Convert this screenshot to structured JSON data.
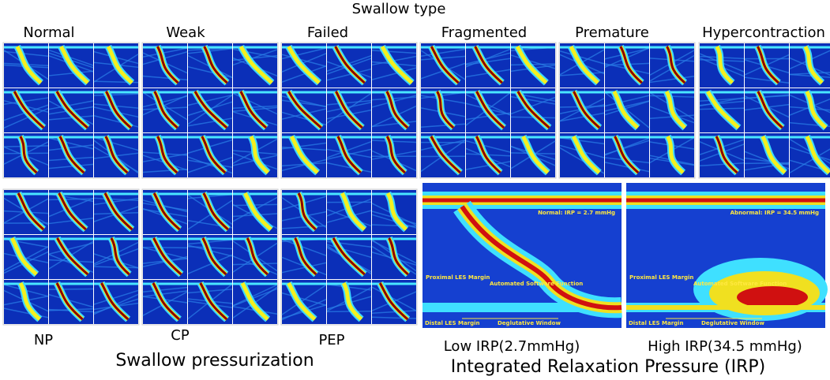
{
  "swallow_type": {
    "title": "Swallow type",
    "panels": [
      "Normal",
      "Weak",
      "Failed",
      "Fragmented",
      "Premature",
      "Hypercontraction"
    ]
  },
  "swallow_pressurization": {
    "title": "Swallow pressurization",
    "panels": [
      "NP",
      "CP",
      "PEP"
    ]
  },
  "irp": {
    "title": "Integrated Relaxation Pressure (IRP)",
    "panels": [
      {
        "label": "Low IRP(2.7mmHg)",
        "annotation": "Normal: IRP = 2.7 mmHg",
        "proximal": "Proximal LES Margin",
        "software": "Automated Software Function",
        "distal": "Distal LES Margin",
        "window": "Deglutative Window"
      },
      {
        "label": "High IRP(34.5 mmHg)",
        "annotation": "Abnormal: IRP = 34.5 mmHg",
        "proximal": "Proximal LES Margin",
        "software": "Automated Software Function",
        "distal": "Distal LES Margin",
        "window": "Deglutative Window"
      }
    ]
  }
}
